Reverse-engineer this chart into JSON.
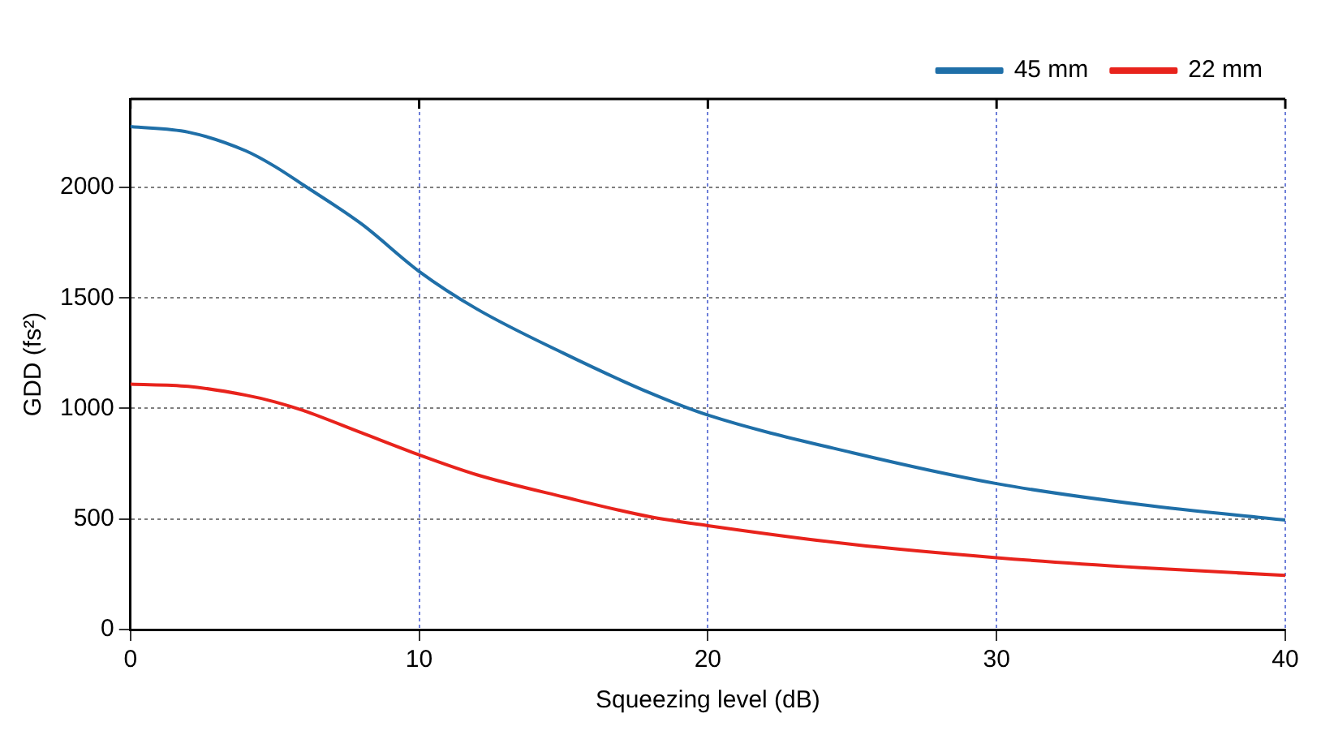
{
  "chart_data": {
    "type": "line",
    "xlabel": "Squeezing level (dB)",
    "ylabel": "GDD (fs²)",
    "xlim": [
      0,
      40
    ],
    "xticks": [
      0,
      10,
      20,
      30,
      40
    ],
    "ylim": [
      0,
      2400
    ],
    "yticks": [
      0,
      500,
      1000,
      1500,
      2000
    ],
    "grid": true,
    "legend": "top right",
    "marker": "none",
    "line_style": "solid",
    "series": [
      {
        "name": "45 mm",
        "color": "#1f6fa8",
        "x": [
          0,
          2,
          4,
          5,
          6,
          8,
          10,
          12,
          15,
          18,
          20,
          25,
          30,
          35,
          40
        ],
        "values": [
          2275,
          2250,
          2165,
          2095,
          2010,
          1835,
          1620,
          1450,
          1250,
          1070,
          970,
          800,
          660,
          565,
          495
        ]
      },
      {
        "name": "22 mm",
        "color": "#e8231c",
        "x": [
          0,
          2,
          4,
          5,
          6,
          8,
          10,
          12,
          15,
          18,
          20,
          25,
          30,
          35,
          40
        ],
        "values": [
          1110,
          1100,
          1060,
          1030,
          990,
          890,
          790,
          700,
          600,
          510,
          470,
          385,
          325,
          280,
          245
        ]
      }
    ]
  }
}
